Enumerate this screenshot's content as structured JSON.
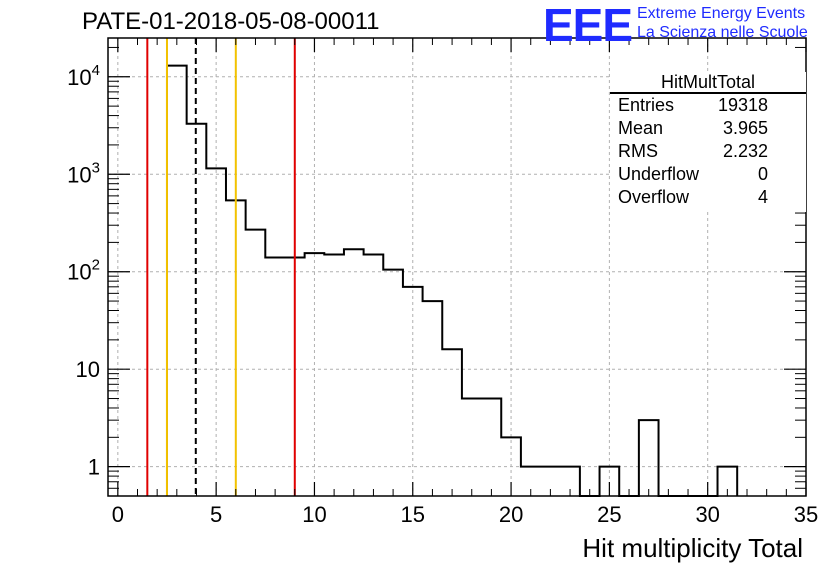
{
  "title": "PATE-01-2018-05-08-00011",
  "logo": {
    "mark": "EEE",
    "line1": "Extreme Energy Events",
    "line2": "La Scienza nelle Scuole",
    "color": "#1f2bff"
  },
  "stats_box": {
    "name": "HitMultTotal",
    "rows": [
      {
        "label": "Entries",
        "value": "19318"
      },
      {
        "label": "Mean",
        "value": "3.965"
      },
      {
        "label": "RMS",
        "value": "2.232"
      },
      {
        "label": "Underflow",
        "value": "0"
      },
      {
        "label": "Overflow",
        "value": "4"
      }
    ]
  },
  "chart_data": {
    "type": "bar",
    "title": "PATE-01-2018-05-08-00011",
    "xlabel": "Hit multiplicity Total",
    "ylabel": "",
    "xlim": [
      -0.5,
      35
    ],
    "ylim": [
      0.5,
      25000
    ],
    "yscale": "log",
    "grid": true,
    "x_ticks": [
      "0",
      "5",
      "10",
      "15",
      "20",
      "25",
      "30",
      "35"
    ],
    "y_ticks": [
      "1",
      "10",
      "10^2",
      "10^3",
      "10^4"
    ],
    "bin_width": 1,
    "bin_centers": [
      3,
      4,
      5,
      6,
      7,
      8,
      9,
      10,
      11,
      12,
      13,
      14,
      15,
      16,
      17,
      18,
      19,
      20,
      21,
      22,
      23,
      24,
      25,
      26,
      27,
      28,
      29,
      30,
      31
    ],
    "values": [
      13000,
      3300,
      1150,
      540,
      270,
      140,
      140,
      155,
      150,
      170,
      150,
      105,
      70,
      50,
      16,
      5,
      5,
      2,
      1,
      1,
      1,
      0,
      1,
      0,
      3,
      0,
      0,
      0,
      1
    ],
    "vertical_lines": [
      {
        "x": 1.5,
        "color": "#e00000",
        "style": "solid"
      },
      {
        "x": 2.5,
        "color": "#f2c200",
        "style": "solid"
      },
      {
        "x": 3.965,
        "color": "#000000",
        "style": "dashed"
      },
      {
        "x": 6.0,
        "color": "#f2c200",
        "style": "solid"
      },
      {
        "x": 9.0,
        "color": "#e00000",
        "style": "solid"
      }
    ]
  }
}
